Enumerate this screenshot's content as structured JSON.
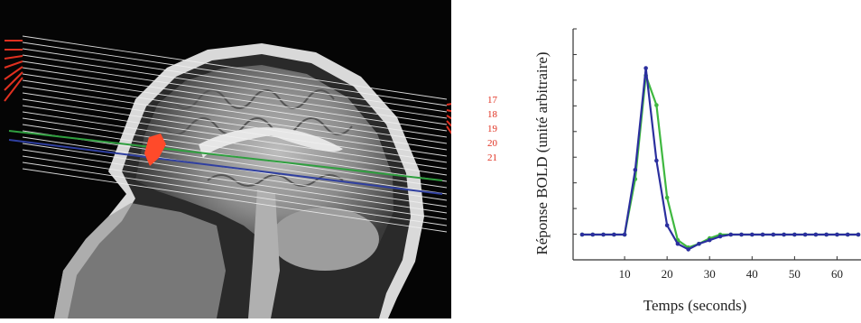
{
  "mri": {
    "slice_numbers": [
      "17",
      "18",
      "19",
      "20",
      "21"
    ]
  },
  "chart_data": {
    "type": "line",
    "xlabel": "Temps (seconds)",
    "ylabel": "Réponse BOLD (unité arbitraire)",
    "xlim": [
      0,
      65
    ],
    "x_ticks": [
      10,
      20,
      30,
      40,
      50,
      60
    ],
    "series": [
      {
        "color": "#2b2f9e",
        "x": [
          0,
          2.5,
          5,
          7.5,
          10,
          12.5,
          15,
          17.5,
          20,
          22.5,
          25,
          27.5,
          30,
          32.5,
          35,
          37.5,
          40,
          42.5,
          45,
          47.5,
          50,
          52.5,
          55,
          57.5,
          60,
          62.5,
          65
        ],
        "y": [
          0,
          0,
          0,
          0,
          0,
          0.35,
          0.9,
          0.4,
          0.05,
          -0.05,
          -0.08,
          -0.05,
          -0.03,
          -0.01,
          0,
          0,
          0,
          0,
          0,
          0,
          0,
          0,
          0,
          0,
          0,
          0,
          0
        ]
      },
      {
        "color": "#3fb840",
        "x": [
          0,
          2.5,
          5,
          7.5,
          10,
          12.5,
          15,
          17.5,
          20,
          22.5,
          25,
          27.5,
          30,
          32.5,
          35,
          37.5,
          40,
          42.5,
          45,
          47.5,
          50,
          52.5,
          55,
          57.5,
          60,
          62.5,
          65
        ],
        "y": [
          0,
          0,
          0,
          0,
          0,
          0.3,
          0.86,
          0.7,
          0.2,
          -0.03,
          -0.07,
          -0.05,
          -0.02,
          0,
          0,
          0,
          0,
          0,
          0,
          0,
          0,
          0,
          0,
          0,
          0,
          0,
          0
        ]
      }
    ]
  }
}
